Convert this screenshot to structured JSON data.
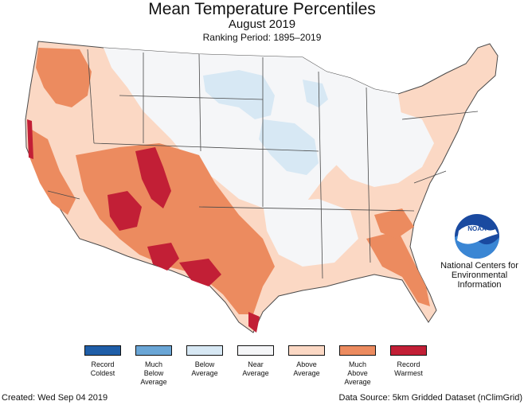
{
  "title": "Mean Temperature Percentiles",
  "subtitle": "August 2019",
  "ranking_period": "Ranking Period: 1895–2019",
  "organization": "National Centers for Environmental Information",
  "logo_text": "NOAA",
  "created": "Created: Wed Sep 04 2019",
  "data_source": "Data Source: 5km Gridded Dataset (nClimGrid)",
  "colors": {
    "record_coldest": "#1f5ea8",
    "much_below": "#6aa6d6",
    "below": "#d7e8f4",
    "near": "#f5f6f8",
    "above": "#fbd8c4",
    "much_above": "#ec8b5f",
    "record_warmest": "#c21f36",
    "border": "#4a4a4a"
  },
  "legend": [
    {
      "label": "Record\nColdest",
      "color": "#1f5ea8"
    },
    {
      "label": "Much\nBelow\nAverage",
      "color": "#6aa6d6"
    },
    {
      "label": "Below\nAverage",
      "color": "#d7e8f4"
    },
    {
      "label": "Near\nAverage",
      "color": "#f5f6f8"
    },
    {
      "label": "Above\nAverage",
      "color": "#fbd8c4"
    },
    {
      "label": "Much\nAbove\nAverage",
      "color": "#ec8b5f"
    },
    {
      "label": "Record\nWarmest",
      "color": "#c21f36"
    }
  ]
}
